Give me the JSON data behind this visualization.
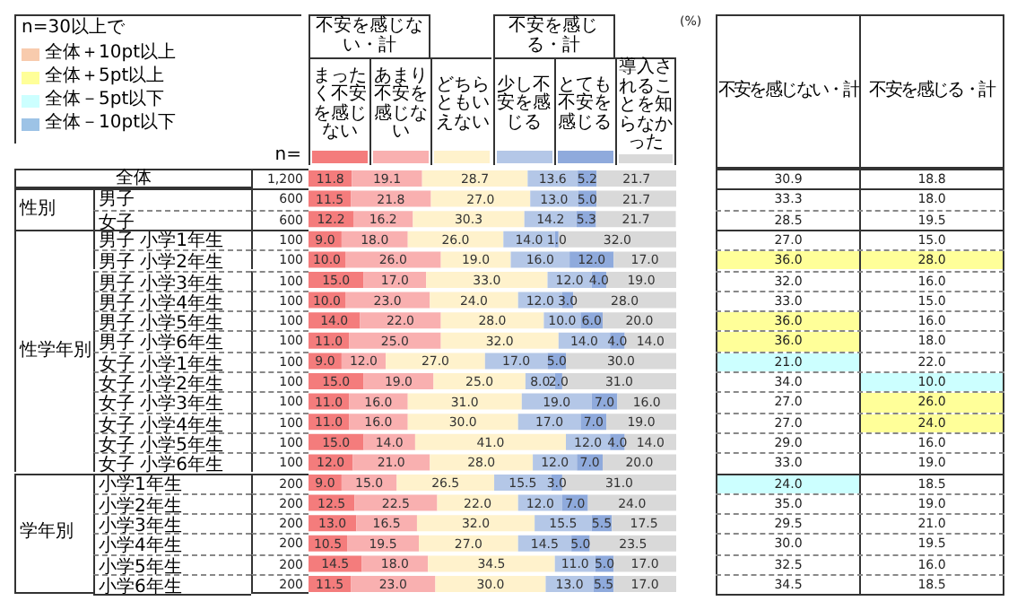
{
  "chart_data": [
    {
      "type": "bar",
      "orientation": "horizontal",
      "stacked": true,
      "legend": "top",
      "tick_labels": false,
      "xlim": [
        0,
        100
      ],
      "categories": [
        "全体",
        "男子",
        "女子",
        "男子 小学1年生",
        "男子 小学2年生",
        "男子 小学3年生",
        "男子 小学4年生",
        "男子 小学5年生",
        "男子 小学6年生",
        "女子 小学1年生",
        "女子 小学2年生",
        "女子 小学3年生",
        "女子 小学4年生",
        "女子 小学5年生",
        "女子 小学6年生",
        "小学1年生",
        "小学2年生",
        "小学3年生",
        "小学4年生",
        "小学5年生",
        "小学6年生"
      ],
      "series": [
        {
          "name": "まったく不安を感じない",
          "color": "#f47c7c",
          "values": [
            11.8,
            11.5,
            12.2,
            9.0,
            10.0,
            15.0,
            10.0,
            14.0,
            11.0,
            9.0,
            15.0,
            11.0,
            11.0,
            15.0,
            12.0,
            9.0,
            12.5,
            13.0,
            10.5,
            14.5,
            11.5
          ],
          "value_labels": [
            "11.8",
            "11.5",
            "12.2",
            "9.0",
            "10.0",
            "15.0",
            "10.0",
            "14.0",
            "11.0",
            "9.0",
            "15.0",
            "11.0",
            "11.0",
            "15.0",
            "12.0",
            "9.0",
            "12.5",
            "13.0",
            "10.5",
            "14.5",
            "11.5"
          ]
        },
        {
          "name": "あまり不安を感じない",
          "color": "#f9b0b0",
          "values": [
            19.1,
            21.8,
            16.2,
            18.0,
            26.0,
            17.0,
            23.0,
            22.0,
            25.0,
            12.0,
            19.0,
            16.0,
            16.0,
            14.0,
            21.0,
            15.0,
            22.5,
            16.5,
            19.5,
            18.0,
            23.0
          ],
          "value_labels": [
            "19.1",
            "21.8",
            "16.2",
            "18.0",
            "26.0",
            "17.0",
            "23.0",
            "22.0",
            "25.0",
            "12.0",
            "19.0",
            "16.0",
            "16.0",
            "14.0",
            "21.0",
            "15.0",
            "22.5",
            "16.5",
            "19.5",
            "18.0",
            "23.0"
          ]
        },
        {
          "name": "どちらともいえない",
          "color": "#fff2cc",
          "values": [
            28.7,
            27.0,
            30.3,
            26.0,
            19.0,
            33.0,
            24.0,
            28.0,
            32.0,
            27.0,
            25.0,
            31.0,
            30.0,
            41.0,
            28.0,
            26.5,
            22.0,
            32.0,
            27.0,
            34.5,
            30.0
          ],
          "value_labels": [
            "28.7",
            "27.0",
            "30.3",
            "26.0",
            "19.0",
            "33.0",
            "24.0",
            "28.0",
            "32.0",
            "27.0",
            "25.0",
            "31.0",
            "30.0",
            "41.0",
            "28.0",
            "26.5",
            "22.0",
            "32.0",
            "27.0",
            "34.5",
            "30.0"
          ]
        },
        {
          "name": "少し不安を感じる",
          "color": "#b4c7e7",
          "values": [
            13.6,
            13.0,
            14.2,
            14.0,
            16.0,
            12.0,
            12.0,
            10.0,
            14.0,
            17.0,
            8.0,
            19.0,
            17.0,
            12.0,
            12.0,
            15.5,
            12.0,
            15.5,
            14.5,
            11.0,
            13.0
          ],
          "value_labels": [
            "13.6",
            "13.0",
            "14.2",
            "14.0",
            "16.0",
            "12.0",
            "12.0",
            "10.0",
            "14.0",
            "17.0",
            "8.0",
            "19.0",
            "17.0",
            "12.0",
            "12.0",
            "15.5",
            "12.0",
            "15.5",
            "14.5",
            "11.0",
            "13.0"
          ]
        },
        {
          "name": "とても不安を感じる",
          "color": "#8faadc",
          "values": [
            5.2,
            5.0,
            5.3,
            1.0,
            12.0,
            4.0,
            3.0,
            6.0,
            4.0,
            5.0,
            2.0,
            7.0,
            7.0,
            4.0,
            7.0,
            3.0,
            7.0,
            5.5,
            5.0,
            5.0,
            5.5
          ],
          "value_labels": [
            "5.2",
            "5.0",
            "5.3",
            "1.0",
            "12.0",
            "4.0",
            "3.0",
            "6.0",
            "4.0",
            "5.0",
            "2.0",
            "7.0",
            "7.0",
            "4.0",
            "7.0",
            "3.0",
            "7.0",
            "5.5",
            "5.0",
            "5.0",
            "5.5"
          ]
        },
        {
          "name": "導入されることを知らなかった",
          "color": "#d9d9d9",
          "values": [
            21.7,
            21.7,
            21.7,
            32.0,
            17.0,
            19.0,
            28.0,
            20.0,
            14.0,
            30.0,
            31.0,
            16.0,
            19.0,
            14.0,
            20.0,
            31.0,
            24.0,
            17.5,
            23.5,
            17.0,
            17.0
          ],
          "value_labels": [
            "21.7",
            "21.7",
            "21.7",
            "32.0",
            "17.0",
            "19.0",
            "28.0",
            "20.0",
            "14.0",
            "30.0",
            "31.0",
            "16.0",
            "19.0",
            "14.0",
            "20.0",
            "31.0",
            "24.0",
            "17.5",
            "23.5",
            "17.0",
            "17.0"
          ]
        }
      ],
      "annotations": [
        "n=30以上で",
        "全体＋10pt以上",
        "全体＋5pt以上",
        "全体－5pt以下",
        "全体－10pt以下",
        "(%)",
        "n=",
        "不安を感じない・計",
        "不安を感じる・計",
        "性別",
        "性学年別",
        "学年別",
        "1,200",
        "600",
        "600",
        "100",
        "100",
        "100",
        "100",
        "100",
        "100",
        "100",
        "100",
        "100",
        "100",
        "100",
        "100",
        "200",
        "200",
        "200",
        "200",
        "200",
        "200"
      ]
    },
    {
      "type": "heatmap",
      "categories": [
        "不安を感じない・計",
        "不安を感じる・計"
      ],
      "y_categories": [
        null,
        null,
        null,
        null,
        null,
        null,
        null,
        null,
        null,
        null,
        null,
        null,
        null,
        null,
        null,
        null,
        null,
        null,
        null,
        null,
        null
      ],
      "cells": [
        [
          30.9,
          18.8
        ],
        [
          33.3,
          18.0
        ],
        [
          28.5,
          19.5
        ],
        [
          27.0,
          15.0
        ],
        [
          36.0,
          28.0
        ],
        [
          32.0,
          16.0
        ],
        [
          33.0,
          15.0
        ],
        [
          36.0,
          16.0
        ],
        [
          36.0,
          18.0
        ],
        [
          21.0,
          22.0
        ],
        [
          34.0,
          10.0
        ],
        [
          27.0,
          26.0
        ],
        [
          27.0,
          24.0
        ],
        [
          29.0,
          16.0
        ],
        [
          33.0,
          19.0
        ],
        [
          24.0,
          18.5
        ],
        [
          35.0,
          19.0
        ],
        [
          29.5,
          21.0
        ],
        [
          30.0,
          19.5
        ],
        [
          32.5,
          16.0
        ],
        [
          34.5,
          18.5
        ]
      ],
      "cell_labels": [
        [
          "30.9",
          "18.8"
        ],
        [
          "33.3",
          "18.0"
        ],
        [
          "28.5",
          "19.5"
        ],
        [
          "27.0",
          "15.0"
        ],
        [
          "36.0",
          "28.0"
        ],
        [
          "32.0",
          "16.0"
        ],
        [
          "33.0",
          "15.0"
        ],
        [
          "36.0",
          "16.0"
        ],
        [
          "36.0",
          "18.0"
        ],
        [
          "21.0",
          "22.0"
        ],
        [
          "34.0",
          "10.0"
        ],
        [
          "27.0",
          "26.0"
        ],
        [
          "27.0",
          "24.0"
        ],
        [
          "29.0",
          "16.0"
        ],
        [
          "33.0",
          "19.0"
        ],
        [
          "24.0",
          "18.5"
        ],
        [
          "35.0",
          "19.0"
        ],
        [
          "29.5",
          "21.0"
        ],
        [
          "30.0",
          "19.5"
        ],
        [
          "32.5",
          "16.0"
        ],
        [
          "34.5",
          "18.5"
        ]
      ]
    }
  ]
}
